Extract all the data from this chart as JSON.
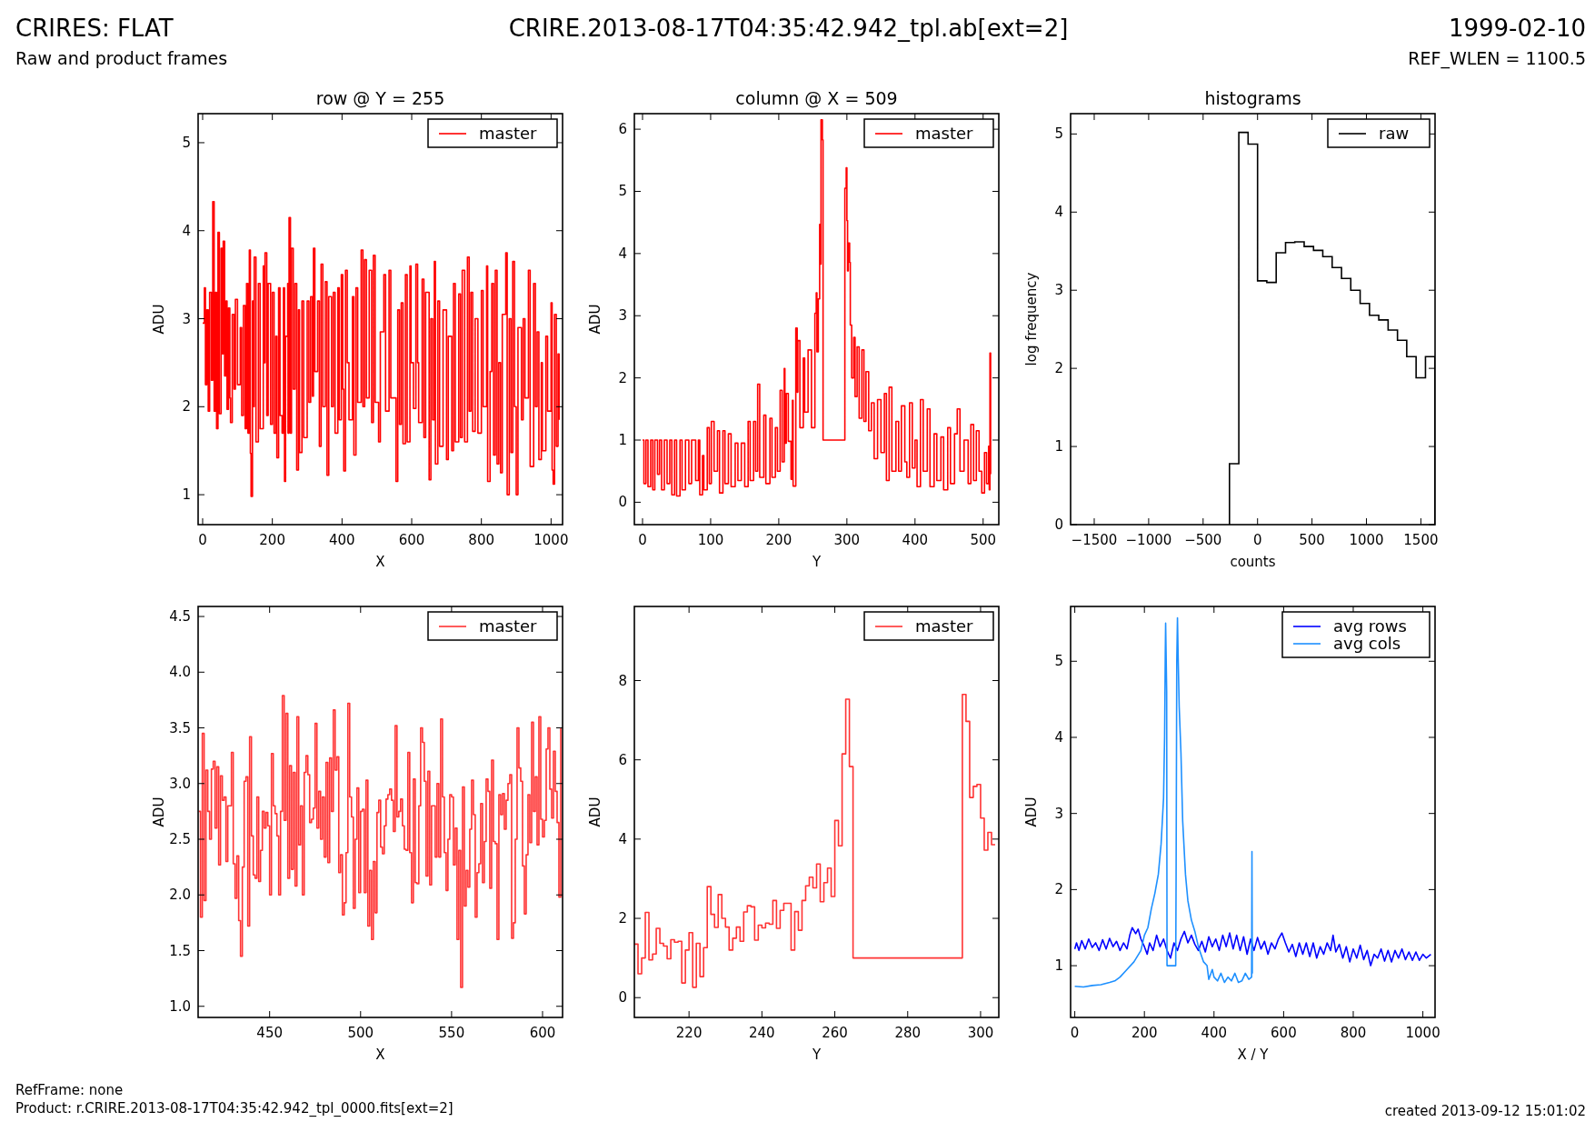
{
  "chart_data": [
    {
      "type": "other",
      "title": "CRIRES: FLAT",
      "subtitle": "Raw and product frames",
      "annotations": [
        "CRIRE.2013-08-17T04:35:42.942_tpl.ab[ext=2]",
        "1999-02-10",
        "REF_WLEN = 1100.5",
        "RefFrame: none",
        "Product: r.CRIRE.2013-08-17T04:35:42.942_tpl_0000.fits[ext=2]",
        "created 2013-09-12 15:01:02"
      ]
    },
    {
      "type": "step",
      "title": "row @ Y = 255",
      "xlabel": "X",
      "ylabel": "ADU",
      "xlim": [
        -13,
        1033
      ],
      "ylim": [
        0.66,
        5.33
      ],
      "xticks": [
        0,
        200,
        400,
        600,
        800,
        1000
      ],
      "yticks": [
        1,
        2,
        3,
        4,
        5
      ],
      "legend": "top right",
      "x": [
        0,
        5,
        8,
        12,
        16,
        20,
        25,
        29,
        33,
        37,
        40,
        44,
        48,
        53,
        57,
        59,
        63,
        67,
        70,
        74,
        78,
        80,
        85,
        90,
        94,
        100,
        108,
        112,
        117,
        122,
        126,
        130,
        134,
        137,
        139,
        143,
        147,
        148,
        153,
        160,
        165,
        174,
        176,
        179,
        184,
        188,
        195,
        200,
        205,
        210,
        213,
        218,
        222,
        228,
        232,
        235,
        238,
        244,
        245,
        248,
        252,
        255,
        260,
        265,
        270,
        275,
        278,
        285,
        290,
        300,
        305,
        310,
        315,
        318,
        322,
        330,
        335,
        340,
        345,
        352,
        357,
        362,
        370,
        375,
        380,
        388,
        392,
        398,
        402,
        405,
        410,
        415,
        420,
        430,
        434,
        440,
        445,
        455,
        460,
        465,
        470,
        478,
        485,
        490,
        495,
        505,
        510,
        520,
        525,
        535,
        540,
        555,
        560,
        565,
        570,
        575,
        582,
        587,
        595,
        598,
        605,
        612,
        617,
        620,
        630,
        635,
        640,
        650,
        655,
        660,
        665,
        668,
        675,
        680,
        690,
        700,
        705,
        715,
        720,
        725,
        735,
        740,
        745,
        752,
        760,
        765,
        770,
        775,
        782,
        790,
        800,
        805,
        815,
        818,
        825,
        830,
        835,
        840,
        845,
        850,
        855,
        860,
        870,
        874,
        880,
        885,
        890,
        895,
        900,
        905,
        915,
        920,
        925,
        935,
        940,
        950,
        955,
        960,
        965,
        972,
        975,
        985,
        990,
        1000,
        1003,
        1006,
        1010,
        1015,
        1020,
        1023
      ],
      "series": [
        {
          "name": "master",
          "color": "#ff0000",
          "values": [
            2.95,
            3.35,
            2.25,
            3.1,
            1.95,
            3.3,
            2.3,
            4.33,
            1.95,
            3.3,
            1.75,
            3.98,
            1.92,
            3.8,
            2.6,
            3.88,
            2.35,
            3.2,
            1.97,
            3.12,
            2.1,
            1.82,
            3.05,
            2.2,
            3.22,
            2.25,
            2.9,
            1.9,
            3.15,
            1.75,
            3.4,
            1.7,
            3.78,
            1.47,
            0.98,
            3.2,
            2.0,
            3.7,
            1.6,
            3.4,
            1.75,
            3.6,
            2.5,
            3.75,
            1.9,
            3.4,
            1.8,
            3.3,
            1.7,
            2.8,
            1.42,
            3.35,
            1.9,
            1.7,
            3.35,
            1.15,
            2.8,
            3.4,
            1.7,
            4.15,
            1.7,
            3.8,
            2.2,
            3.4,
            1.28,
            3.1,
            1.48,
            3.2,
            1.65,
            3.2,
            2.05,
            3.25,
            2.12,
            3.8,
            2.4,
            3.2,
            1.55,
            3.62,
            2.0,
            3.42,
            1.22,
            3.25,
            2.0,
            3.3,
            1.7,
            3.35,
            1.85,
            3.5,
            2.2,
            1.27,
            3.55,
            2.5,
            1.85,
            3.25,
            1.45,
            3.35,
            2.05,
            3.78,
            2.0,
            3.67,
            2.1,
            3.55,
            1.82,
            3.72,
            2.05,
            1.6,
            2.85,
            3.5,
            1.95,
            3.55,
            2.1,
            1.15,
            3.1,
            1.8,
            3.18,
            1.58,
            3.5,
            1.6,
            3.6,
            2.5,
            1.98,
            3.62,
            2.5,
            1.82,
            3.45,
            1.65,
            3.3,
            1.17,
            3.0,
            1.85,
            3.65,
            1.35,
            3.2,
            1.55,
            3.1,
            1.4,
            2.8,
            1.5,
            3.4,
            1.6,
            3.28,
            1.65,
            3.55,
            1.6,
            3.7,
            1.95,
            3.3,
            1.72,
            3.0,
            1.7,
            3.32,
            2.0,
            3.6,
            1.15,
            2.4,
            3.4,
            1.45,
            3.55,
            1.35,
            2.5,
            1.25,
            3.05,
            3.75,
            1.0,
            3.0,
            1.48,
            3.65,
            2.0,
            1.0,
            2.9,
            1.85,
            3.0,
            2.1,
            3.55,
            1.32,
            3.4,
            2.0,
            2.85,
            1.4,
            2.5,
            1.5,
            2.8,
            1.95,
            3.18,
            1.28,
            1.12,
            3.05,
            1.55,
            2.6,
            1.85
          ]
        }
      ]
    },
    {
      "type": "step",
      "title": "column @ X = 509",
      "xlabel": "Y",
      "ylabel": "ADU",
      "xlim": [
        -12,
        523
      ],
      "ylim": [
        -0.36,
        6.25
      ],
      "xticks": [
        0,
        100,
        200,
        300,
        400,
        500
      ],
      "yticks": [
        0,
        1,
        2,
        3,
        4,
        5,
        6
      ],
      "legend": "top right",
      "x": [
        0,
        2,
        5,
        8,
        12,
        15,
        18,
        22,
        25,
        28,
        32,
        36,
        40,
        43,
        47,
        50,
        55,
        58,
        63,
        68,
        72,
        78,
        82,
        84,
        88,
        90,
        95,
        98,
        101,
        105,
        110,
        113,
        118,
        121,
        126,
        130,
        136,
        140,
        145,
        150,
        155,
        158,
        163,
        166,
        169,
        172,
        178,
        181,
        187,
        190,
        195,
        198,
        202,
        205,
        208,
        209,
        211,
        214,
        218,
        220,
        221,
        225,
        227,
        228,
        231,
        236,
        238,
        243,
        248,
        253,
        255,
        256,
        258,
        260,
        261,
        262,
        264,
        265,
        294,
        297,
        299,
        300,
        301,
        302,
        304,
        305,
        307,
        310,
        312,
        315,
        318,
        322,
        325,
        328,
        332,
        336,
        340,
        345,
        350,
        355,
        358,
        362,
        366,
        372,
        376,
        380,
        385,
        388,
        392,
        396,
        400,
        403,
        408,
        412,
        418,
        422,
        428,
        432,
        438,
        442,
        448,
        452,
        458,
        462,
        466,
        472,
        478,
        482,
        486,
        490,
        494,
        498,
        502,
        505,
        508,
        509,
        510,
        511
      ],
      "series": [
        {
          "name": "master",
          "color": "#ff0000",
          "values": [
            1.0,
            0.3,
            1.0,
            0.25,
            1.0,
            0.2,
            1.0,
            0.45,
            1.0,
            0.2,
            1.0,
            0.3,
            1.0,
            0.12,
            1.0,
            0.1,
            1.0,
            0.2,
            1.0,
            0.3,
            1.0,
            0.35,
            1.0,
            0.12,
            0.75,
            0.2,
            1.2,
            0.3,
            1.3,
            0.5,
            1.15,
            0.15,
            1.15,
            0.3,
            1.1,
            0.25,
            0.95,
            0.35,
            0.95,
            0.25,
            1.3,
            0.35,
            1.3,
            0.5,
            1.9,
            0.4,
            1.4,
            0.3,
            1.35,
            0.4,
            1.2,
            0.5,
            1.8,
            0.65,
            2.15,
            0.95,
            1.75,
            0.98,
            0.37,
            1.64,
            0.26,
            2.8,
            1.77,
            2.6,
            1.2,
            2.32,
            1.45,
            2.45,
            1.2,
            3.04,
            3.37,
            2.42,
            3.27,
            4.47,
            3.83,
            6.15,
            5.83,
            1.0,
            1.0,
            5.05,
            5.38,
            4.53,
            3.72,
            4.17,
            3.86,
            2.85,
            2.0,
            2.65,
            1.7,
            2.5,
            1.35,
            2.45,
            1.3,
            2.1,
            1.15,
            1.6,
            0.7,
            1.65,
            0.8,
            1.75,
            0.35,
            1.85,
            0.5,
            1.3,
            0.5,
            1.55,
            0.65,
            0.4,
            1.6,
            0.55,
            1.0,
            0.25,
            1.65,
            0.5,
            1.5,
            0.25,
            1.1,
            0.35,
            1.05,
            0.2,
            1.2,
            0.3,
            1.1,
            1.5,
            0.5,
            1.0,
            0.3,
            1.25,
            0.35,
            1.15,
            0.5,
            0.15,
            0.8,
            0.3,
            0.9,
            0.2,
            2.4,
            0.45
          ]
        }
      ]
    },
    {
      "type": "histogram",
      "title": "histograms",
      "xlabel": "counts",
      "ylabel": "log frequency",
      "xlim": [
        -1717,
        1630
      ],
      "ylim": [
        0,
        5.26
      ],
      "xticks": [
        {
          "value": -1500,
          "label": "−1500"
        },
        {
          "value": -1000,
          "label": "−1000"
        },
        {
          "value": -500,
          "label": "−500"
        },
        0,
        500,
        1000,
        1500
      ],
      "yticks": [
        0,
        1,
        2,
        3,
        4,
        5
      ],
      "legend": "top right",
      "bins": [
        -258,
        -172,
        -87,
        0,
        85,
        171,
        257,
        342,
        428,
        514,
        599,
        685,
        771,
        856,
        942,
        1028,
        1113,
        1199,
        1285,
        1370,
        1456,
        1542,
        1628
      ],
      "series": [
        {
          "name": "raw",
          "color": "#000000",
          "values": [
            0.78,
            5.02,
            4.87,
            3.12,
            3.1,
            3.48,
            3.61,
            3.62,
            3.56,
            3.51,
            3.43,
            3.29,
            3.15,
            3.0,
            2.83,
            2.68,
            2.62,
            2.49,
            2.36,
            2.15,
            1.88,
            2.15
          ]
        }
      ]
    },
    {
      "type": "step",
      "xlabel": "X",
      "ylabel": "ADU",
      "xlim": [
        410.7,
        611
      ],
      "ylim": [
        0.9,
        4.59
      ],
      "xticks": [
        450,
        500,
        550,
        600
      ],
      "yticks": [
        {
          "value": 1,
          "label": "1.0"
        },
        1.5,
        {
          "value": 2,
          "label": "2.0"
        },
        2.5,
        {
          "value": 3,
          "label": "3.0"
        },
        3.5,
        {
          "value": 4,
          "label": "4.0"
        },
        4.5
      ],
      "legend": "top right",
      "x": [
        411,
        412,
        413,
        414,
        415,
        416,
        417,
        418,
        419,
        420,
        421,
        422,
        423,
        424,
        425,
        426,
        427,
        428,
        429,
        430,
        431,
        432,
        433,
        434,
        435,
        436,
        437,
        438,
        439,
        440,
        441,
        442,
        443,
        444,
        445,
        446,
        447,
        448,
        449,
        450,
        451,
        452,
        453,
        454,
        455,
        456,
        457,
        458,
        459,
        460,
        461,
        462,
        463,
        464,
        465,
        466,
        467,
        468,
        469,
        470,
        471,
        472,
        473,
        474,
        475,
        476,
        477,
        478,
        479,
        480,
        481,
        482,
        483,
        484,
        485,
        486,
        487,
        488,
        489,
        490,
        491,
        492,
        493,
        494,
        495,
        496,
        497,
        498,
        499,
        500,
        501,
        502,
        503,
        504,
        505,
        506,
        507,
        508,
        509,
        510,
        511,
        512,
        513,
        514,
        515,
        516,
        517,
        518,
        519,
        520,
        521,
        522,
        523,
        524,
        525,
        526,
        527,
        528,
        529,
        530,
        531,
        532,
        533,
        534,
        535,
        536,
        537,
        538,
        539,
        540,
        541,
        542,
        543,
        544,
        545,
        546,
        547,
        548,
        549,
        550,
        551,
        552,
        553,
        554,
        555,
        556,
        557,
        558,
        559,
        560,
        561,
        562,
        563,
        564,
        565,
        566,
        567,
        568,
        569,
        570,
        571,
        572,
        573,
        574,
        575,
        576,
        577,
        578,
        579,
        580,
        581,
        582,
        583,
        584,
        585,
        586,
        587,
        588,
        589,
        590,
        591,
        592,
        593,
        594,
        595,
        596,
        597,
        598,
        599,
        600,
        601,
        602,
        603,
        604,
        605,
        606,
        607,
        608,
        609,
        610
      ],
      "series": [
        {
          "name": "master",
          "color": "#ff3333",
          "values": [
            2.75,
            1.8,
            3.45,
            1.95,
            3.12,
            2.75,
            2.5,
            3.13,
            3.2,
            2.6,
            3.15,
            2.27,
            3.07,
            2.85,
            2.88,
            2.3,
            2.8,
            2.8,
            3.28,
            2.28,
            1.97,
            2.35,
            1.77,
            1.45,
            2.25,
            3.02,
            3.06,
            1.72,
            3.42,
            2.53,
            2.18,
            2.15,
            2.88,
            2.12,
            2.4,
            2.75,
            2.6,
            2.74,
            2.62,
            2.0,
            3.27,
            2.8,
            2.73,
            2.53,
            2.0,
            2.75,
            3.79,
            2.67,
            3.63,
            2.15,
            3.16,
            2.23,
            3.1,
            2.08,
            3.6,
            2.45,
            2.8,
            2.0,
            3.1,
            3.25,
            3.08,
            2.65,
            2.68,
            2.78,
            3.54,
            2.6,
            2.93,
            2.5,
            2.88,
            2.34,
            3.19,
            2.29,
            3.23,
            2.75,
            3.66,
            3.12,
            3.24,
            2.2,
            2.36,
            1.82,
            1.93,
            2.38,
            3.72,
            2.88,
            2.7,
            1.88,
            2.5,
            2.96,
            2.02,
            2.75,
            2.77,
            2.02,
            3.03,
            1.72,
            2.22,
            1.6,
            2.3,
            1.84,
            2.74,
            2.85,
            2.43,
            2.37,
            2.62,
            2.86,
            2.9,
            2.95,
            2.85,
            2.57,
            3.52,
            2.7,
            2.75,
            2.86,
            2.62,
            2.41,
            2.4,
            3.28,
            2.38,
            1.93,
            3.04,
            2.11,
            2.1,
            2.8,
            3.5,
            3.37,
            3.02,
            2.17,
            3.11,
            2.09,
            2.8,
            2.8,
            2.34,
            3.0,
            2.34,
            3.58,
            2.88,
            2.38,
            2.04,
            2.5,
            2.9,
            2.88,
            2.27,
            2.6,
            1.6,
            2.4,
            1.17,
            2.97,
            1.9,
            2.22,
            2.07,
            2.59,
            3.03,
            2.72,
            1.8,
            2.2,
            2.28,
            2.82,
            2.11,
            2.48,
            3.04,
            2.93,
            2.06,
            3.21,
            2.48,
            2.46,
            1.6,
            2.9,
            2.72,
            2.91,
            2.59,
            2.85,
            3.0,
            3.08,
            1.61,
            1.75,
            2.5,
            3.5,
            3.14,
            3.02,
            2.26,
            1.83,
            2.36,
            2.9,
            2.47,
            3.55,
            2.75,
            3.06,
            2.45,
            3.6,
            2.68,
            2.52,
            2.67,
            3.31,
            3.5,
            2.95,
            2.69,
            3.29,
            2.93,
            2.65,
            1.98,
            3.5
          ]
        }
      ]
    },
    {
      "type": "step",
      "xlabel": "Y",
      "ylabel": "ADU",
      "xlim": [
        205,
        305
      ],
      "ylim": [
        -0.5,
        9.87
      ],
      "xticks": [
        220,
        240,
        260,
        280,
        300
      ],
      "yticks": [
        0,
        2,
        4,
        6,
        8
      ],
      "legend": "top right",
      "x": [
        205,
        206,
        207,
        208,
        209,
        210,
        211,
        212,
        213,
        214,
        215,
        216,
        217,
        218,
        219,
        220,
        221,
        222,
        223,
        224,
        225,
        226,
        227,
        228,
        229,
        230,
        231,
        232,
        233,
        234,
        235,
        236,
        237,
        238,
        239,
        240,
        241,
        242,
        243,
        244,
        245,
        246,
        247,
        248,
        249,
        250,
        251,
        252,
        253,
        254,
        255,
        256,
        257,
        258,
        259,
        260,
        261,
        262,
        263,
        264,
        265,
        266,
        267,
        268,
        269,
        270,
        271,
        272,
        273,
        274,
        275,
        276,
        277,
        278,
        279,
        280,
        281,
        282,
        283,
        284,
        285,
        286,
        287,
        288,
        289,
        290,
        291,
        292,
        293,
        294,
        295,
        296,
        297,
        298,
        299,
        300,
        301,
        302,
        303,
        304
      ],
      "series": [
        {
          "name": "master",
          "color": "#ff3333",
          "values": [
            1.35,
            0.6,
            1.0,
            2.15,
            0.95,
            1.1,
            1.75,
            1.37,
            1.3,
            0.98,
            1.46,
            1.4,
            1.42,
            0.37,
            1.2,
            1.64,
            0.26,
            1.37,
            0.53,
            1.26,
            2.8,
            2.1,
            1.77,
            2.6,
            2.0,
            1.78,
            1.2,
            1.5,
            1.78,
            1.42,
            2.16,
            2.32,
            2.29,
            1.45,
            1.83,
            1.76,
            1.88,
            1.85,
            2.45,
            1.75,
            2.2,
            2.38,
            2.38,
            1.2,
            2.17,
            1.7,
            2.45,
            2.82,
            3.04,
            2.77,
            3.37,
            2.42,
            2.9,
            3.27,
            2.55,
            4.47,
            3.83,
            6.15,
            7.53,
            5.83,
            1.0,
            1.0,
            1.0,
            1.0,
            1.0,
            1.0,
            1.0,
            1.0,
            1.0,
            1.0,
            1.0,
            1.0,
            1.0,
            1.0,
            1.0,
            1.0,
            1.0,
            1.0,
            1.0,
            1.0,
            1.0,
            1.0,
            1.0,
            1.0,
            1.0,
            1.0,
            1.0,
            1.0,
            1.0,
            1.0,
            7.65,
            6.97,
            5.05,
            5.33,
            5.38,
            4.53,
            3.72,
            4.17,
            3.86,
            3.86
          ]
        }
      ]
    },
    {
      "type": "line",
      "xlabel": "X / Y",
      "ylabel": "ADU",
      "xlim": [
        -12,
        1035
      ],
      "ylim": [
        0.32,
        5.72
      ],
      "xticks": [
        0,
        200,
        400,
        600,
        800,
        1000
      ],
      "yticks": [
        1,
        2,
        3,
        4,
        5
      ],
      "legend": "top right",
      "series": [
        {
          "name": "avg rows",
          "color": "#0000ff",
          "x": [
            0,
            5,
            12,
            20,
            30,
            40,
            50,
            60,
            70,
            80,
            90,
            100,
            110,
            120,
            130,
            140,
            150,
            158,
            165,
            175,
            182,
            190,
            200,
            208,
            215,
            225,
            235,
            245,
            255,
            265,
            275,
            285,
            295,
            305,
            315,
            325,
            335,
            345,
            355,
            365,
            375,
            385,
            395,
            405,
            415,
            425,
            435,
            445,
            455,
            465,
            475,
            485,
            495,
            505,
            515,
            525,
            535,
            545,
            555,
            565,
            575,
            585,
            595,
            605,
            615,
            625,
            635,
            645,
            655,
            665,
            675,
            685,
            695,
            705,
            715,
            725,
            735,
            742,
            750,
            760,
            770,
            780,
            790,
            800,
            810,
            820,
            830,
            840,
            850,
            860,
            870,
            880,
            890,
            900,
            910,
            920,
            930,
            940,
            950,
            960,
            970,
            980,
            990,
            1000,
            1010,
            1023
          ],
          "values": [
            1.22,
            1.3,
            1.2,
            1.33,
            1.22,
            1.35,
            1.24,
            1.3,
            1.2,
            1.34,
            1.22,
            1.36,
            1.25,
            1.32,
            1.2,
            1.3,
            1.22,
            1.4,
            1.5,
            1.42,
            1.48,
            1.35,
            1.25,
            1.15,
            1.3,
            1.2,
            1.4,
            1.25,
            1.35,
            1.2,
            1.1,
            1.3,
            1.2,
            1.35,
            1.45,
            1.3,
            1.4,
            1.28,
            1.2,
            1.32,
            1.18,
            1.38,
            1.25,
            1.35,
            1.2,
            1.4,
            1.25,
            1.43,
            1.22,
            1.4,
            1.2,
            1.38,
            1.15,
            1.35,
            1.2,
            1.37,
            1.22,
            1.32,
            1.15,
            1.3,
            1.22,
            1.35,
            1.43,
            1.3,
            1.18,
            1.28,
            1.12,
            1.3,
            1.15,
            1.3,
            1.12,
            1.3,
            1.1,
            1.25,
            1.15,
            1.3,
            1.2,
            1.4,
            1.18,
            1.28,
            1.1,
            1.25,
            1.05,
            1.22,
            1.1,
            1.27,
            1.08,
            1.2,
            1.0,
            1.15,
            1.1,
            1.22,
            1.06,
            1.2,
            1.05,
            1.2,
            1.1,
            1.22,
            1.08,
            1.18,
            1.07,
            1.18,
            1.07,
            1.15,
            1.1,
            1.15
          ]
        },
        {
          "name": "avg cols",
          "color": "#1e90ff",
          "x": [
            0,
            25,
            50,
            75,
            100,
            115,
            130,
            150,
            170,
            190,
            200,
            210,
            220,
            230,
            240,
            248,
            255,
            258,
            260,
            261,
            264,
            265,
            290,
            291,
            293,
            295,
            297,
            300,
            305,
            310,
            318,
            325,
            335,
            345,
            355,
            370,
            380,
            385,
            395,
            400,
            410,
            420,
            430,
            440,
            450,
            460,
            470,
            480,
            490,
            500,
            508,
            509,
            510,
            511
          ],
          "values": [
            0.73,
            0.72,
            0.74,
            0.75,
            0.78,
            0.8,
            0.85,
            0.95,
            1.05,
            1.2,
            1.4,
            1.5,
            1.75,
            1.95,
            2.2,
            2.6,
            3.2,
            4.0,
            5.1,
            5.5,
            4.6,
            1.0,
            1.0,
            2.1,
            5.0,
            5.57,
            5.05,
            4.4,
            3.8,
            2.9,
            2.2,
            1.85,
            1.6,
            1.45,
            1.25,
            1.05,
            1.0,
            0.82,
            0.95,
            0.85,
            0.8,
            0.9,
            0.78,
            0.85,
            0.8,
            0.9,
            0.78,
            0.8,
            0.9,
            0.82,
            0.85,
            2.5,
            0.9,
            0.9
          ]
        }
      ]
    }
  ]
}
